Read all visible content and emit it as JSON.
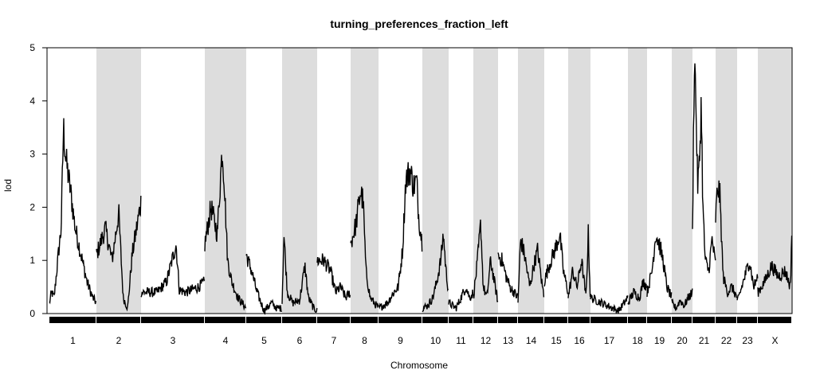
{
  "chart_data": {
    "type": "line",
    "title": "turning_preferences_fraction_left",
    "xlabel": "Chromosome",
    "ylabel": "lod",
    "ylim": [
      0,
      5
    ],
    "yticks": [
      0,
      1,
      2,
      3,
      4,
      5
    ],
    "grid": false,
    "shading": "alternate chromosomes shaded gray",
    "colors": {
      "line": "#000000",
      "shade": "#dddddd",
      "rug": "#000000"
    },
    "chromosomes": [
      {
        "label": "1",
        "profile": [
          [
            0,
            0.2
          ],
          [
            0.05,
            0.4
          ],
          [
            0.1,
            0.3
          ],
          [
            0.2,
            1.2
          ],
          [
            0.25,
            1.6
          ],
          [
            0.3,
            3.5
          ],
          [
            0.35,
            2.9
          ],
          [
            0.45,
            2.3
          ],
          [
            0.55,
            1.6
          ],
          [
            0.65,
            1.2
          ],
          [
            0.8,
            0.6
          ],
          [
            0.92,
            0.3
          ],
          [
            1,
            0.2
          ]
        ]
      },
      {
        "label": "2",
        "profile": [
          [
            0,
            1.1
          ],
          [
            0.2,
            1.6
          ],
          [
            0.35,
            1.0
          ],
          [
            0.5,
            1.9
          ],
          [
            0.6,
            0.3
          ],
          [
            0.7,
            0.1
          ],
          [
            0.8,
            1.1
          ],
          [
            0.9,
            1.6
          ],
          [
            1,
            2.1
          ]
        ]
      },
      {
        "label": "3",
        "profile": [
          [
            0,
            0.4
          ],
          [
            0.25,
            0.4
          ],
          [
            0.4,
            0.6
          ],
          [
            0.55,
            1.3
          ],
          [
            0.6,
            0.45
          ],
          [
            0.7,
            0.4
          ],
          [
            0.9,
            0.5
          ],
          [
            1,
            0.6
          ]
        ]
      },
      {
        "label": "4",
        "profile": [
          [
            0,
            1.3
          ],
          [
            0.15,
            2.0
          ],
          [
            0.3,
            1.5
          ],
          [
            0.42,
            3.1
          ],
          [
            0.47,
            2.5
          ],
          [
            0.55,
            1.0
          ],
          [
            0.65,
            0.6
          ],
          [
            0.8,
            0.3
          ],
          [
            1,
            0.1
          ]
        ]
      },
      {
        "label": "5",
        "profile": [
          [
            0,
            1.1
          ],
          [
            0.15,
            0.8
          ],
          [
            0.3,
            0.4
          ],
          [
            0.5,
            0.05
          ],
          [
            0.7,
            0.2
          ],
          [
            0.85,
            0.1
          ],
          [
            1,
            0.1
          ]
        ]
      },
      {
        "label": "6",
        "profile": [
          [
            0,
            0.2
          ],
          [
            0.05,
            1.5
          ],
          [
            0.15,
            0.4
          ],
          [
            0.3,
            0.2
          ],
          [
            0.5,
            0.25
          ],
          [
            0.65,
            0.9
          ],
          [
            0.75,
            0.3
          ],
          [
            0.9,
            0.1
          ],
          [
            1,
            0.05
          ]
        ]
      },
      {
        "label": "7",
        "profile": [
          [
            0,
            1.0
          ],
          [
            0.2,
            1.0
          ],
          [
            0.4,
            0.8
          ],
          [
            0.55,
            0.4
          ],
          [
            0.7,
            0.5
          ],
          [
            0.85,
            0.3
          ],
          [
            1,
            0.4
          ]
        ]
      },
      {
        "label": "8",
        "profile": [
          [
            0,
            1.3
          ],
          [
            0.2,
            1.7
          ],
          [
            0.35,
            2.3
          ],
          [
            0.45,
            2.1
          ],
          [
            0.55,
            0.8
          ],
          [
            0.7,
            0.3
          ],
          [
            0.85,
            0.2
          ],
          [
            1,
            0.1
          ]
        ]
      },
      {
        "label": "9",
        "profile": [
          [
            0,
            0.1
          ],
          [
            0.2,
            0.2
          ],
          [
            0.35,
            0.4
          ],
          [
            0.45,
            0.5
          ],
          [
            0.55,
            1.2
          ],
          [
            0.62,
            2.5
          ],
          [
            0.72,
            2.7
          ],
          [
            0.8,
            2.4
          ],
          [
            0.87,
            2.5
          ],
          [
            0.92,
            1.8
          ],
          [
            1,
            1.3
          ]
        ]
      },
      {
        "label": "10",
        "profile": [
          [
            0,
            0.1
          ],
          [
            0.2,
            0.15
          ],
          [
            0.4,
            0.3
          ],
          [
            0.55,
            0.6
          ],
          [
            0.7,
            1.0
          ],
          [
            0.8,
            1.5
          ],
          [
            0.9,
            0.8
          ],
          [
            1,
            0.4
          ]
        ]
      },
      {
        "label": "11",
        "profile": [
          [
            0,
            0.2
          ],
          [
            0.3,
            0.1
          ],
          [
            0.5,
            0.3
          ],
          [
            0.7,
            0.5
          ],
          [
            0.85,
            0.3
          ],
          [
            1,
            0.4
          ]
        ]
      },
      {
        "label": "12",
        "profile": [
          [
            0,
            0.3
          ],
          [
            0.15,
            0.9
          ],
          [
            0.3,
            1.7
          ],
          [
            0.4,
            0.5
          ],
          [
            0.55,
            0.3
          ],
          [
            0.7,
            1.0
          ],
          [
            0.85,
            0.6
          ],
          [
            1,
            0.2
          ]
        ]
      },
      {
        "label": "13",
        "profile": [
          [
            0,
            1.1
          ],
          [
            0.2,
            1.0
          ],
          [
            0.4,
            0.7
          ],
          [
            0.6,
            0.5
          ],
          [
            0.8,
            0.4
          ],
          [
            1,
            0.3
          ]
        ]
      },
      {
        "label": "14",
        "profile": [
          [
            0,
            0.2
          ],
          [
            0.1,
            1.4
          ],
          [
            0.25,
            1.1
          ],
          [
            0.45,
            0.5
          ],
          [
            0.6,
            0.9
          ],
          [
            0.75,
            1.2
          ],
          [
            0.9,
            0.6
          ],
          [
            1,
            0.3
          ]
        ]
      },
      {
        "label": "15",
        "profile": [
          [
            0,
            0.6
          ],
          [
            0.2,
            0.9
          ],
          [
            0.45,
            1.2
          ],
          [
            0.65,
            1.5
          ],
          [
            0.8,
            0.8
          ],
          [
            1,
            0.4
          ]
        ]
      },
      {
        "label": "16",
        "profile": [
          [
            0,
            0.3
          ],
          [
            0.2,
            0.8
          ],
          [
            0.4,
            0.5
          ],
          [
            0.6,
            1.0
          ],
          [
            0.8,
            0.3
          ],
          [
            0.9,
            1.5
          ],
          [
            1,
            0.2
          ]
        ]
      },
      {
        "label": "17",
        "profile": [
          [
            0,
            0.3
          ],
          [
            0.3,
            0.2
          ],
          [
            0.6,
            0.1
          ],
          [
            0.75,
            0.05
          ],
          [
            0.9,
            0.2
          ],
          [
            1,
            0.3
          ]
        ]
      },
      {
        "label": "18",
        "profile": [
          [
            0,
            0.2
          ],
          [
            0.3,
            0.4
          ],
          [
            0.6,
            0.3
          ],
          [
            0.8,
            0.6
          ],
          [
            1,
            0.5
          ]
        ]
      },
      {
        "label": "19",
        "profile": [
          [
            0,
            0.4
          ],
          [
            0.2,
            0.8
          ],
          [
            0.35,
            1.5
          ],
          [
            0.5,
            1.3
          ],
          [
            0.65,
            1.0
          ],
          [
            0.8,
            0.5
          ],
          [
            1,
            0.3
          ]
        ]
      },
      {
        "label": "20",
        "profile": [
          [
            0,
            0.2
          ],
          [
            0.2,
            0.1
          ],
          [
            0.4,
            0.25
          ],
          [
            0.6,
            0.15
          ],
          [
            0.8,
            0.3
          ],
          [
            1,
            0.4
          ]
        ]
      },
      {
        "label": "21",
        "profile": [
          [
            0,
            1.5
          ],
          [
            0.08,
            4.9
          ],
          [
            0.15,
            4.0
          ],
          [
            0.22,
            2.4
          ],
          [
            0.3,
            2.8
          ],
          [
            0.38,
            4.0
          ],
          [
            0.45,
            2.0
          ],
          [
            0.55,
            1.0
          ],
          [
            0.7,
            0.8
          ],
          [
            0.85,
            1.4
          ],
          [
            1,
            0.9
          ]
        ]
      },
      {
        "label": "22",
        "profile": [
          [
            0,
            1.8
          ],
          [
            0.1,
            2.4
          ],
          [
            0.2,
            2.2
          ],
          [
            0.35,
            0.7
          ],
          [
            0.55,
            0.4
          ],
          [
            0.75,
            0.5
          ],
          [
            1,
            0.3
          ]
        ]
      },
      {
        "label": "23",
        "profile": [
          [
            0,
            0.2
          ],
          [
            0.3,
            0.6
          ],
          [
            0.6,
            1.0
          ],
          [
            0.8,
            0.5
          ],
          [
            1,
            0.7
          ]
        ]
      },
      {
        "label": "X",
        "profile": [
          [
            0,
            0.4
          ],
          [
            0.2,
            0.6
          ],
          [
            0.4,
            0.9
          ],
          [
            0.6,
            0.7
          ],
          [
            0.8,
            0.8
          ],
          [
            0.95,
            0.5
          ],
          [
            1,
            1.8
          ]
        ]
      }
    ]
  }
}
